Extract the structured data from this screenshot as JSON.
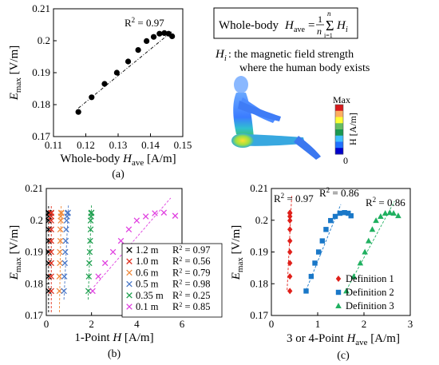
{
  "formula": {
    "prefix": "Whole-body ",
    "lhs_var": "H",
    "lhs_sub": "ave",
    "eq": "=",
    "frac_num": "1",
    "frac_den": "n",
    "sum_top": "n",
    "sum_bottom": "i=1",
    "rhs_var": "H",
    "rhs_sub": "i"
  },
  "note": {
    "var": "H",
    "sub": "i",
    "line1": " : the magnetic field strength",
    "line2": "where the human body exists"
  },
  "colorbar": {
    "max_label": "Max",
    "min_label": "0",
    "title": "H [A/m]",
    "colors": [
      "#d7191c",
      "#fdae61",
      "#ffff33",
      "#66bd63",
      "#1a9850",
      "#40c0ff",
      "#2171ff",
      "#0000cc"
    ]
  },
  "chart_data": [
    {
      "panel": "(a)",
      "type": "scatter",
      "x_var": "Whole-body ",
      "x_var_italic": "H",
      "x_sub": "ave",
      "x_unit": " [A/m]",
      "y_var": "E",
      "y_sub": "max",
      "y_unit": " [V/m]",
      "xlim": [
        0.11,
        0.15
      ],
      "ylim": [
        0.17,
        0.21
      ],
      "xticks": [
        0.11,
        0.12,
        0.13,
        0.14,
        0.15
      ],
      "xtick_labels": [
        "0.11",
        "0.12",
        "0.13",
        "0.14",
        "0.15"
      ],
      "yticks": [
        0.17,
        0.18,
        0.19,
        0.2,
        0.21
      ],
      "ytick_labels": [
        "0.17",
        "0.18",
        "0.19",
        "0.2",
        "0.21"
      ],
      "r2_label": "R",
      "r2_sup": "2",
      "r2_value": " = 0.97",
      "color": "#000000",
      "points": [
        [
          0.1177,
          0.1777
        ],
        [
          0.1218,
          0.1823
        ],
        [
          0.1258,
          0.1865
        ],
        [
          0.1296,
          0.19
        ],
        [
          0.1331,
          0.1935
        ],
        [
          0.1362,
          0.1971
        ],
        [
          0.1388,
          0.1999
        ],
        [
          0.141,
          0.2012
        ],
        [
          0.1428,
          0.2022
        ],
        [
          0.1443,
          0.2024
        ],
        [
          0.1456,
          0.2022
        ],
        [
          0.1467,
          0.2014
        ]
      ],
      "fit": [
        [
          0.1177,
          0.1789
        ],
        [
          0.1467,
          0.2029
        ]
      ]
    },
    {
      "panel": "(b)",
      "type": "scatter",
      "x_label": "1-Point ",
      "x_var_italic": "H",
      "x_unit": " [A/m]",
      "y_var": "E",
      "y_sub": "max",
      "y_unit": " [V/m]",
      "xlim": [
        0,
        6
      ],
      "ylim": [
        0.17,
        0.21
      ],
      "xticks": [
        0,
        2,
        4,
        6
      ],
      "xtick_labels": [
        "0",
        "2",
        "4",
        "6"
      ],
      "yticks": [
        0.17,
        0.18,
        0.19,
        0.2,
        0.21
      ],
      "ytick_labels": [
        "0.17",
        "0.18",
        "0.19",
        "0.2",
        "0.21"
      ],
      "series": [
        {
          "name": "1.2 m",
          "r2": "0.97",
          "color": "#000000",
          "points": [
            [
              0.1,
              0.1777
            ],
            [
              0.1,
              0.1823
            ],
            [
              0.1,
              0.1865
            ],
            [
              0.1,
              0.19
            ],
            [
              0.1,
              0.1935
            ],
            [
              0.1,
              0.1971
            ],
            [
              0.1,
              0.1999
            ],
            [
              0.1,
              0.2012
            ],
            [
              0.1,
              0.2022
            ],
            [
              0.1,
              0.2024
            ]
          ]
        },
        {
          "name": "1.0 m",
          "r2": "0.56",
          "color": "#e03020",
          "points": [
            [
              0.22,
              0.1777
            ],
            [
              0.22,
              0.1823
            ],
            [
              0.22,
              0.1865
            ],
            [
              0.22,
              0.19
            ],
            [
              0.22,
              0.1935
            ],
            [
              0.22,
              0.1971
            ],
            [
              0.22,
              0.1999
            ],
            [
              0.22,
              0.2012
            ],
            [
              0.22,
              0.2022
            ],
            [
              0.22,
              0.2024
            ]
          ]
        },
        {
          "name": "0.6 m",
          "r2": "0.79",
          "color": "#f08a3c",
          "points": [
            [
              0.58,
              0.1777
            ],
            [
              0.58,
              0.1823
            ],
            [
              0.6,
              0.1865
            ],
            [
              0.6,
              0.19
            ],
            [
              0.62,
              0.1935
            ],
            [
              0.62,
              0.1971
            ],
            [
              0.64,
              0.1999
            ],
            [
              0.64,
              0.2012
            ],
            [
              0.66,
              0.2022
            ],
            [
              0.66,
              0.2024
            ]
          ]
        },
        {
          "name": "0.5 m",
          "r2": "0.98",
          "color": "#4a78c8",
          "points": [
            [
              0.78,
              0.1777
            ],
            [
              0.8,
              0.1823
            ],
            [
              0.82,
              0.1865
            ],
            [
              0.84,
              0.19
            ],
            [
              0.86,
              0.1935
            ],
            [
              0.88,
              0.1971
            ],
            [
              0.9,
              0.1999
            ],
            [
              0.92,
              0.2012
            ],
            [
              0.94,
              0.2022
            ],
            [
              0.96,
              0.2024
            ]
          ]
        },
        {
          "name": "0.35 m",
          "r2": "0.25",
          "color": "#20a050",
          "points": [
            [
              1.86,
              0.1777
            ],
            [
              1.88,
              0.1823
            ],
            [
              1.9,
              0.1865
            ],
            [
              1.92,
              0.19
            ],
            [
              1.94,
              0.1935
            ],
            [
              1.96,
              0.1971
            ],
            [
              1.96,
              0.1999
            ],
            [
              1.98,
              0.2012
            ],
            [
              1.98,
              0.2022
            ],
            [
              2.0,
              0.2024
            ]
          ]
        },
        {
          "name": "0.1 m",
          "r2": "0.85",
          "color": "#e040e0",
          "points": [
            [
              2.05,
              0.1777
            ],
            [
              2.3,
              0.1823
            ],
            [
              2.6,
              0.1865
            ],
            [
              2.95,
              0.19
            ],
            [
              3.3,
              0.1935
            ],
            [
              3.65,
              0.1971
            ],
            [
              4.0,
              0.1999
            ],
            [
              4.4,
              0.2012
            ],
            [
              4.8,
              0.2022
            ],
            [
              5.2,
              0.2024
            ],
            [
              5.7,
              0.2014
            ]
          ]
        }
      ],
      "fits": [
        {
          "color": "#000000",
          "line": [
            [
              0.1,
              0.171
            ],
            [
              0.1,
              0.205
            ]
          ]
        },
        {
          "color": "#e03020",
          "line": [
            [
              0.22,
              0.171
            ],
            [
              0.22,
              0.205
            ]
          ]
        },
        {
          "color": "#f08a3c",
          "line": [
            [
              0.58,
              0.171
            ],
            [
              0.66,
              0.205
            ]
          ]
        },
        {
          "color": "#4a78c8",
          "line": [
            [
              0.78,
              0.175
            ],
            [
              0.98,
              0.205
            ]
          ]
        },
        {
          "color": "#20a050",
          "line": [
            [
              1.85,
              0.175
            ],
            [
              2.0,
              0.205
            ]
          ]
        },
        {
          "color": "#e040e0",
          "line": [
            [
              2.1,
              0.179
            ],
            [
              5.5,
              0.207
            ]
          ]
        }
      ]
    },
    {
      "panel": "(c)",
      "type": "scatter",
      "x_label": "3 or 4-Point ",
      "x_var_italic": "H",
      "x_sub": "ave",
      "x_unit": " [A/m]",
      "y_var": "E",
      "y_sub": "max",
      "y_unit": " [V/m]",
      "xlim": [
        0,
        3
      ],
      "ylim": [
        0.17,
        0.21
      ],
      "xticks": [
        0,
        1,
        2,
        3
      ],
      "xtick_labels": [
        "0",
        "1",
        "2",
        "3"
      ],
      "yticks": [
        0.17,
        0.18,
        0.19,
        0.2,
        0.21
      ],
      "ytick_labels": [
        "0.17",
        "0.18",
        "0.19",
        "0.2",
        "0.21"
      ],
      "series": [
        {
          "name": "Definition 1",
          "marker": "diamond",
          "r2": "0.97",
          "color": "#e0201a",
          "points": [
            [
              0.4,
              0.1777
            ],
            [
              0.4,
              0.1823
            ],
            [
              0.4,
              0.1865
            ],
            [
              0.4,
              0.19
            ],
            [
              0.4,
              0.1935
            ],
            [
              0.4,
              0.1971
            ],
            [
              0.4,
              0.1999
            ],
            [
              0.4,
              0.2012
            ],
            [
              0.4,
              0.2022
            ],
            [
              0.4,
              0.2024
            ]
          ]
        },
        {
          "name": "Definition 2",
          "marker": "square",
          "r2": "0.86",
          "color": "#1a78c8",
          "points": [
            [
              0.75,
              0.1777
            ],
            [
              0.86,
              0.1823
            ],
            [
              0.94,
              0.1865
            ],
            [
              1.02,
              0.19
            ],
            [
              1.1,
              0.1935
            ],
            [
              1.18,
              0.1971
            ],
            [
              1.28,
              0.1999
            ],
            [
              1.38,
              0.2012
            ],
            [
              1.48,
              0.2022
            ],
            [
              1.58,
              0.2024
            ],
            [
              1.66,
              0.2022
            ],
            [
              1.72,
              0.2014
            ]
          ]
        },
        {
          "name": "Definition 3",
          "marker": "triangle",
          "r2": "0.86",
          "color": "#20b060",
          "points": [
            [
              1.62,
              0.1777
            ],
            [
              1.78,
              0.1823
            ],
            [
              1.92,
              0.1865
            ],
            [
              2.02,
              0.19
            ],
            [
              2.1,
              0.1935
            ],
            [
              2.18,
              0.1971
            ],
            [
              2.26,
              0.1999
            ],
            [
              2.36,
              0.2012
            ],
            [
              2.46,
              0.2022
            ],
            [
              2.56,
              0.2024
            ],
            [
              2.64,
              0.2022
            ],
            [
              2.74,
              0.2014
            ]
          ]
        }
      ],
      "fits": [
        {
          "color": "#e0201a",
          "line": [
            [
              0.34,
              0.178
            ],
            [
              0.44,
              0.208
            ]
          ]
        },
        {
          "color": "#1a78c8",
          "line": [
            [
              0.75,
              0.178
            ],
            [
              1.5,
              0.205
            ]
          ]
        },
        {
          "color": "#20b060",
          "line": [
            [
              1.62,
              0.178
            ],
            [
              2.66,
              0.206
            ]
          ]
        }
      ]
    }
  ]
}
